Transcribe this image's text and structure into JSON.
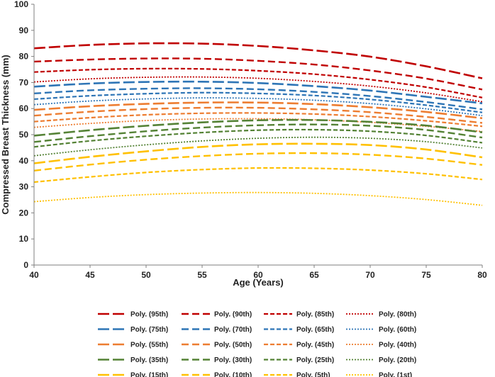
{
  "chart_data": {
    "type": "line",
    "title": "",
    "xlabel": "Age (Years)",
    "ylabel": "Compressed Breast Thickness (mm)",
    "xlim": [
      40,
      80
    ],
    "ylim": [
      0,
      100
    ],
    "xticks": [
      40,
      45,
      50,
      55,
      60,
      65,
      70,
      75,
      80
    ],
    "yticks": [
      0,
      10,
      20,
      30,
      40,
      50,
      60,
      70,
      80,
      90,
      100
    ],
    "grid": false,
    "legend_position": "bottom",
    "x": [
      40,
      45,
      50,
      55,
      60,
      65,
      70,
      75,
      80
    ],
    "series": [
      {
        "name": "Poly. (95th)",
        "color": "#C00000",
        "style": "long-dash",
        "values": [
          83.1,
          84.4,
          85.0,
          84.9,
          84.0,
          82.3,
          79.9,
          76.2,
          71.6
        ]
      },
      {
        "name": "Poly. (90th)",
        "color": "#C00000",
        "style": "dash",
        "values": [
          78.0,
          78.8,
          79.2,
          79.1,
          78.3,
          76.9,
          74.6,
          71.5,
          67.3
        ]
      },
      {
        "name": "Poly. (85th)",
        "color": "#C00000",
        "style": "short-dash",
        "values": [
          74.0,
          74.9,
          75.3,
          75.2,
          74.5,
          73.2,
          71.1,
          68.2,
          64.2
        ]
      },
      {
        "name": "Poly. (80th)",
        "color": "#C00000",
        "style": "dot",
        "values": [
          70.2,
          71.4,
          72.0,
          72.1,
          71.6,
          70.4,
          68.6,
          66.0,
          62.6
        ]
      },
      {
        "name": "Poly. (75th)",
        "color": "#2E75B6",
        "style": "long-dash",
        "values": [
          68.4,
          69.6,
          70.2,
          70.3,
          69.8,
          68.6,
          66.9,
          64.5,
          62.0
        ]
      },
      {
        "name": "Poly. (70th)",
        "color": "#2E75B6",
        "style": "dash",
        "values": [
          65.8,
          67.0,
          67.6,
          67.8,
          67.4,
          66.4,
          64.8,
          62.5,
          59.7
        ]
      },
      {
        "name": "Poly. (65th)",
        "color": "#2E75B6",
        "style": "short-dash",
        "values": [
          63.6,
          64.9,
          65.7,
          66.1,
          65.8,
          65.0,
          63.5,
          61.3,
          58.5
        ]
      },
      {
        "name": "Poly. (60th)",
        "color": "#2E75B6",
        "style": "dot",
        "values": [
          61.5,
          62.9,
          63.7,
          64.1,
          63.9,
          63.2,
          61.9,
          59.9,
          57.3
        ]
      },
      {
        "name": "Poly. (55th)",
        "color": "#ED7D31",
        "style": "long-dash",
        "values": [
          59.5,
          60.9,
          61.8,
          62.3,
          62.3,
          61.7,
          60.5,
          58.7,
          56.3
        ]
      },
      {
        "name": "Poly. (50th)",
        "color": "#ED7D31",
        "style": "dash",
        "values": [
          57.3,
          58.8,
          59.8,
          60.3,
          60.3,
          59.7,
          58.6,
          56.8,
          54.5
        ]
      },
      {
        "name": "Poly. (45th)",
        "color": "#ED7D31",
        "style": "short-dash",
        "values": [
          55.0,
          56.5,
          57.6,
          58.2,
          58.3,
          57.9,
          56.9,
          55.3,
          53.2
        ]
      },
      {
        "name": "Poly. (40th)",
        "color": "#ED7D31",
        "style": "dot",
        "values": [
          52.8,
          54.3,
          55.4,
          56.0,
          56.1,
          55.7,
          54.7,
          53.2,
          51.2
        ]
      },
      {
        "name": "Poly. (35th)",
        "color": "#548235",
        "style": "long-dash",
        "values": [
          49.6,
          51.7,
          53.4,
          54.7,
          55.5,
          55.6,
          54.9,
          53.5,
          50.9
        ]
      },
      {
        "name": "Poly. (30th)",
        "color": "#548235",
        "style": "dash",
        "values": [
          47.2,
          49.4,
          51.3,
          52.7,
          53.6,
          53.9,
          53.4,
          51.8,
          48.9
        ]
      },
      {
        "name": "Poly. (25th)",
        "color": "#548235",
        "style": "short-dash",
        "values": [
          45.3,
          47.6,
          49.4,
          50.8,
          51.7,
          51.9,
          51.3,
          49.7,
          46.9
        ]
      },
      {
        "name": "Poly. (20th)",
        "color": "#548235",
        "style": "dot",
        "values": [
          41.9,
          44.2,
          46.1,
          47.6,
          48.6,
          49.0,
          48.6,
          47.3,
          44.9
        ]
      },
      {
        "name": "Poly. (15th)",
        "color": "#FFC000",
        "style": "long-dash",
        "values": [
          39.0,
          41.5,
          43.6,
          45.3,
          46.3,
          46.5,
          46.0,
          44.3,
          41.3
        ]
      },
      {
        "name": "Poly. (10th)",
        "color": "#FFC000",
        "style": "dash",
        "values": [
          36.2,
          38.5,
          40.4,
          41.8,
          42.7,
          42.9,
          42.3,
          40.8,
          38.4
        ]
      },
      {
        "name": "Poly. (5th)",
        "color": "#FFC000",
        "style": "short-dash",
        "values": [
          31.8,
          33.8,
          35.5,
          36.6,
          37.2,
          37.1,
          36.4,
          35.0,
          32.8
        ]
      },
      {
        "name": "Poly. (1st)",
        "color": "#FFC000",
        "style": "dot",
        "values": [
          24.3,
          25.9,
          27.0,
          27.6,
          27.8,
          27.5,
          26.6,
          25.1,
          22.9
        ]
      }
    ]
  }
}
